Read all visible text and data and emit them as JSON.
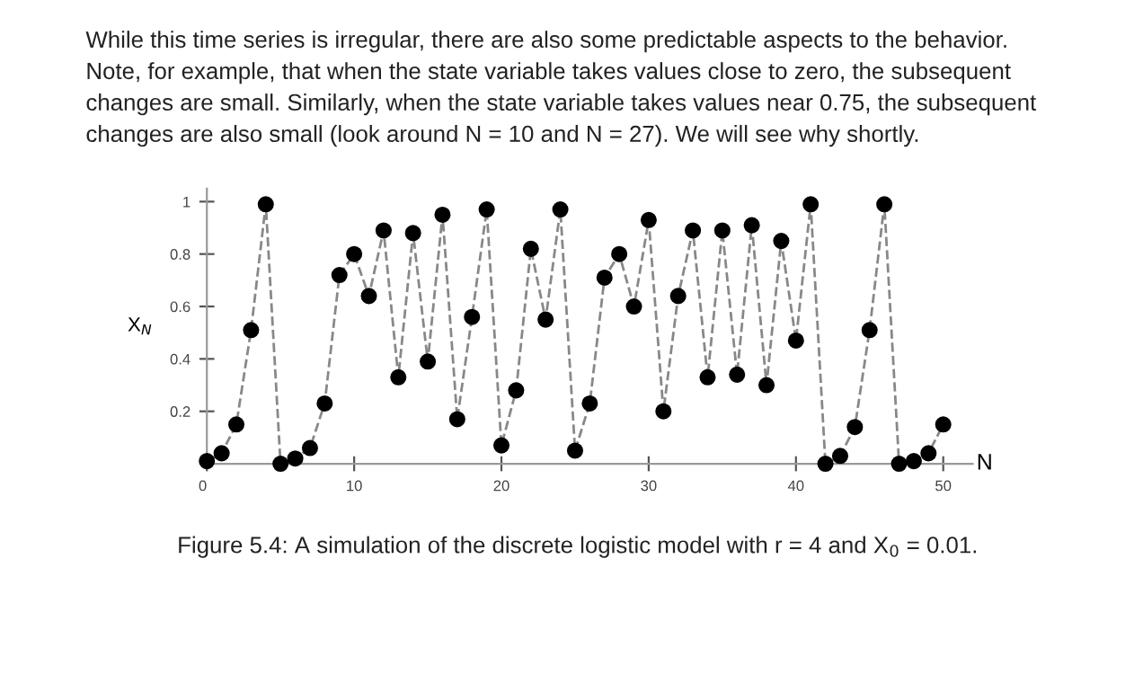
{
  "chart_data": {
    "type": "line",
    "xlabel": "N",
    "ylabel": "X$_{N}$",
    "x": [
      0,
      1,
      2,
      3,
      4,
      5,
      6,
      7,
      8,
      9,
      10,
      11,
      12,
      13,
      14,
      15,
      16,
      17,
      18,
      19,
      20,
      21,
      22,
      23,
      24,
      25,
      26,
      27,
      28,
      29,
      30,
      31,
      32,
      33,
      34,
      35,
      36,
      37,
      38,
      39,
      40,
      41,
      42,
      43,
      44,
      45,
      46,
      47,
      48,
      49,
      50
    ],
    "series": [
      {
        "color": "#000000",
        "values": [
          0.01,
          0.04,
          0.15,
          0.51,
          0.99,
          0.0,
          0.02,
          0.06,
          0.23,
          0.72,
          0.8,
          0.64,
          0.89,
          0.33,
          0.88,
          0.39,
          0.95,
          0.17,
          0.56,
          0.97,
          0.07,
          0.28,
          0.82,
          0.55,
          0.97,
          0.05,
          0.23,
          0.71,
          0.8,
          0.6,
          0.93,
          0.2,
          0.64,
          0.89,
          0.33,
          0.89,
          0.34,
          0.91,
          0.3,
          0.85,
          0.47,
          0.99,
          0.0,
          0.03,
          0.14,
          0.51,
          0.99,
          0.0,
          0.01,
          0.04,
          0.15
        ]
      }
    ],
    "marker": "circle",
    "line_style": "dashed",
    "grid": false,
    "legend": false,
    "xlim": [
      0,
      52
    ],
    "ylim": [
      0,
      1.05
    ],
    "xticks": [
      {
        "value": 0,
        "label": "0"
      },
      10,
      20,
      30,
      40,
      50
    ],
    "yticks": [
      {
        "value": 0,
        "label": null
      },
      0.2,
      0.4,
      0.6,
      0.8,
      1
    ],
    "annotations": [
      "While this time series is irregular, there are also some predictable aspects to the behavior.",
      "Note, for example, that when the state variable takes values close to zero, the subsequent",
      "changes are small. Similarly, when the state variable takes values near 0.75, the subsequent",
      "changes are also small (look around N = 10 and N = 27). We will see why shortly.",
      "Figure 5.4: A simulation of the discrete logistic model with r = 4 and X$_{0}$ = 0.01."
    ]
  }
}
